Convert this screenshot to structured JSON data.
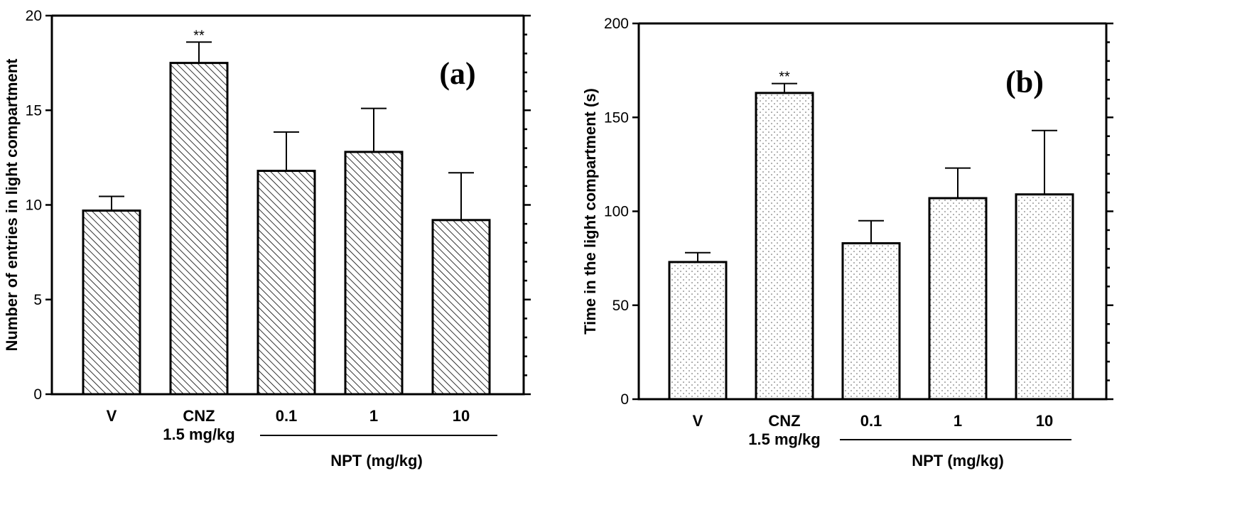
{
  "chart_data": [
    {
      "type": "bar",
      "panel_label": "(a)",
      "ylabel": "Number of entries in light compartment",
      "ylim": [
        0,
        20
      ],
      "yticks": [
        "0",
        "5",
        "10",
        "15",
        "20"
      ],
      "categories": [
        {
          "line1": "V",
          "line2": ""
        },
        {
          "line1": "CNZ",
          "line2": "1.5 mg/kg"
        },
        {
          "line1": "0.1",
          "line2": ""
        },
        {
          "line1": "1",
          "line2": ""
        },
        {
          "line1": "10",
          "line2": ""
        }
      ],
      "values": [
        9.7,
        17.5,
        11.8,
        12.8,
        9.2
      ],
      "errors": [
        0.75,
        1.1,
        2.05,
        2.3,
        2.5
      ],
      "significance": [
        "",
        "**",
        "",
        "",
        ""
      ],
      "group_label": "NPT (mg/kg)",
      "pattern": "hatch"
    },
    {
      "type": "bar",
      "panel_label": "(b)",
      "ylabel": "Time in the light compartment (s)",
      "ylim": [
        0,
        200
      ],
      "yticks": [
        "0",
        "50",
        "100",
        "150",
        "200"
      ],
      "categories": [
        {
          "line1": "V",
          "line2": ""
        },
        {
          "line1": "CNZ",
          "line2": "1.5 mg/kg"
        },
        {
          "line1": "0.1",
          "line2": ""
        },
        {
          "line1": "1",
          "line2": ""
        },
        {
          "line1": "10",
          "line2": ""
        }
      ],
      "values": [
        73,
        163,
        83,
        107,
        109
      ],
      "errors": [
        5,
        5,
        12,
        16,
        34
      ],
      "significance": [
        "",
        "**",
        "",
        "",
        ""
      ],
      "group_label": "NPT (mg/kg)",
      "pattern": "dots"
    }
  ]
}
